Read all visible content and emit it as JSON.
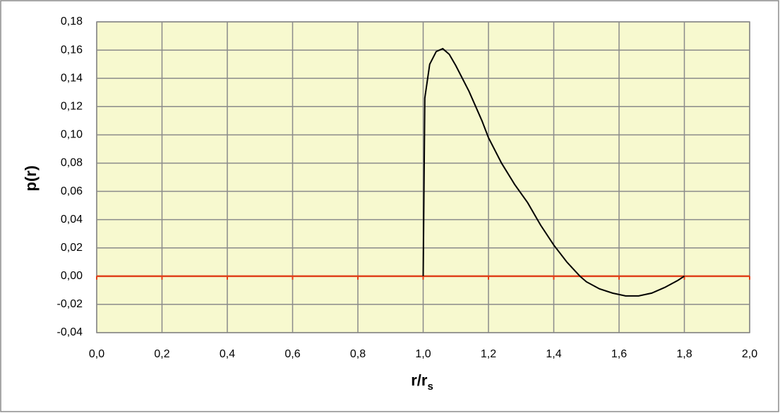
{
  "chart_data": {
    "type": "line",
    "xlabel": "r/r",
    "xlabel_sub": "s",
    "ylabel": "p(r)",
    "x": [
      1.0,
      1.005,
      1.02,
      1.04,
      1.06,
      1.08,
      1.1,
      1.14,
      1.18,
      1.2,
      1.24,
      1.28,
      1.32,
      1.36,
      1.4,
      1.44,
      1.48,
      1.5,
      1.54,
      1.58,
      1.62,
      1.66,
      1.7,
      1.74,
      1.78,
      1.8
    ],
    "series": [
      {
        "color": "#000000",
        "values": [
          0.0,
          0.126,
          0.15,
          0.159,
          0.161,
          0.157,
          0.149,
          0.131,
          0.11,
          0.098,
          0.08,
          0.065,
          0.052,
          0.036,
          0.022,
          0.01,
          0.0,
          -0.004,
          -0.009,
          -0.012,
          -0.014,
          -0.014,
          -0.012,
          -0.008,
          -0.003,
          0.0
        ]
      }
    ],
    "xlim": [
      0,
      2
    ],
    "ylim": [
      -0.04,
      0.18
    ],
    "xticks": [
      {
        "value": 0,
        "label": "0,0"
      },
      {
        "value": 0.2,
        "label": "0,2"
      },
      {
        "value": 0.4,
        "label": "0,4"
      },
      {
        "value": 0.6,
        "label": "0,6"
      },
      {
        "value": 0.8,
        "label": "0,8"
      },
      {
        "value": 1.0,
        "label": "1,0"
      },
      {
        "value": 1.2,
        "label": "1,2"
      },
      {
        "value": 1.4,
        "label": "1,4"
      },
      {
        "value": 1.6,
        "label": "1,6"
      },
      {
        "value": 1.8,
        "label": "1,8"
      },
      {
        "value": 2.0,
        "label": "2,0"
      }
    ],
    "yticks": [
      {
        "value": -0.04,
        "label": "-0,04"
      },
      {
        "value": -0.02,
        "label": "-0,02"
      },
      {
        "value": 0,
        "label": "0,00"
      },
      {
        "value": 0.02,
        "label": "0,02"
      },
      {
        "value": 0.04,
        "label": "0,04"
      },
      {
        "value": 0.06,
        "label": "0,06"
      },
      {
        "value": 0.08,
        "label": "0,08"
      },
      {
        "value": 0.1,
        "label": "0,10"
      },
      {
        "value": 0.12,
        "label": "0,12"
      },
      {
        "value": 0.14,
        "label": "0,14"
      },
      {
        "value": 0.16,
        "label": "0,16"
      },
      {
        "value": 0.18,
        "label": "0,18"
      }
    ],
    "grid": true,
    "plot_background": "#f7f9cf",
    "zero_axis_color": "#e0401a"
  }
}
